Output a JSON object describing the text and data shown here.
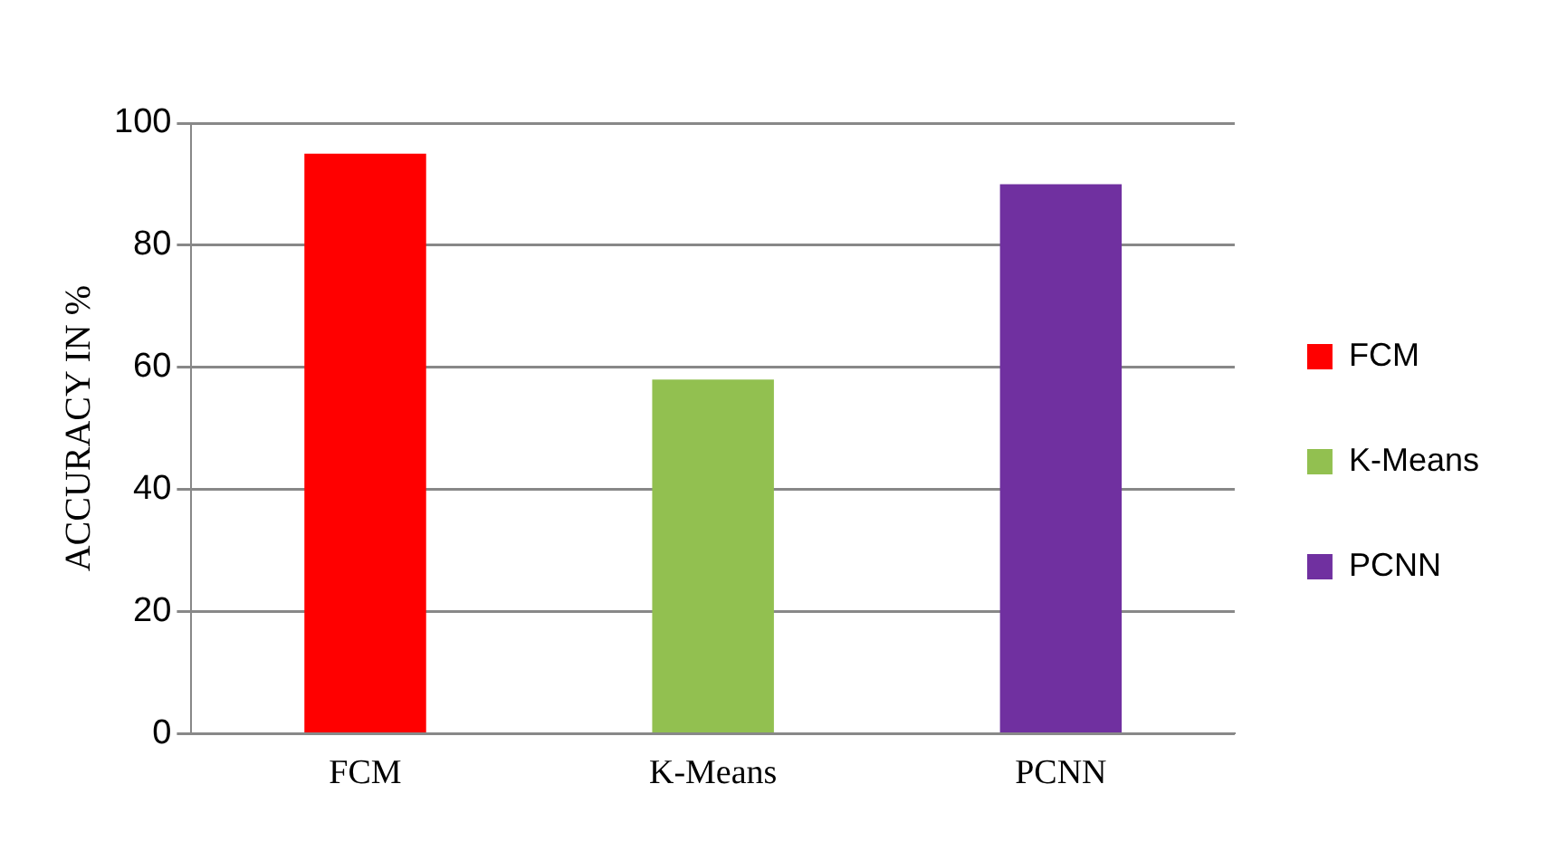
{
  "chart_data": {
    "type": "bar",
    "categories": [
      "FCM",
      "K-Means",
      "PCNN"
    ],
    "series": [
      {
        "name": "FCM",
        "color": "#ff0000",
        "values": [
          95,
          null,
          null
        ]
      },
      {
        "name": "K-Means",
        "color": "#92c050",
        "values": [
          null,
          58,
          null
        ]
      },
      {
        "name": "PCNN",
        "color": "#7030a0",
        "values": [
          null,
          null,
          90
        ]
      }
    ],
    "ylabel": "ACCURACY IN %",
    "ylim": [
      0,
      100
    ],
    "yticks": [
      0,
      20,
      40,
      60,
      80,
      100
    ],
    "grid": "y",
    "legend": "right"
  }
}
